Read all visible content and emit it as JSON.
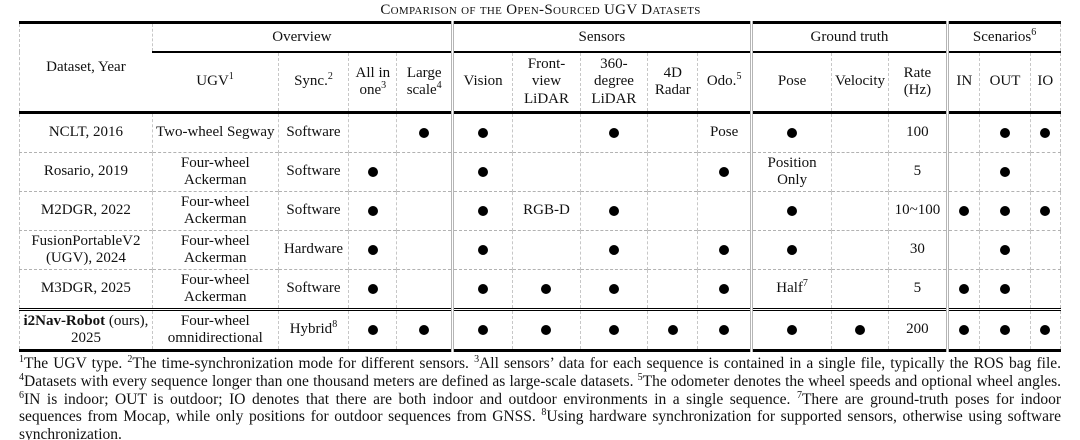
{
  "title": "Comparison of the Open-Sourced UGV Datasets",
  "table": {
    "corner_label": "Dataset, Year",
    "groups": [
      {
        "label": "Overview",
        "sup": ""
      },
      {
        "label": "Sensors",
        "sup": ""
      },
      {
        "label": "Ground truth",
        "sup": ""
      },
      {
        "label": "Scenarios",
        "sup": "6"
      }
    ],
    "columns": [
      {
        "label": "UGV",
        "sup": "1"
      },
      {
        "label": "Sync.",
        "sup": "2"
      },
      {
        "label": "All in one",
        "sup": "3"
      },
      {
        "label": "Large scale",
        "sup": "4"
      },
      {
        "label": "Vision",
        "sup": ""
      },
      {
        "label": "Front-view LiDAR",
        "sup": ""
      },
      {
        "label": "360-degree LiDAR",
        "sup": ""
      },
      {
        "label": "4D Radar",
        "sup": ""
      },
      {
        "label": "Odo.",
        "sup": "5"
      },
      {
        "label": "Pose",
        "sup": ""
      },
      {
        "label": "Velocity",
        "sup": ""
      },
      {
        "label": "Rate (Hz)",
        "sup": ""
      },
      {
        "label": "IN",
        "sup": ""
      },
      {
        "label": "OUT",
        "sup": ""
      },
      {
        "label": "IO",
        "sup": ""
      }
    ],
    "dot_symbol": "●",
    "rows": [
      {
        "dataset_bold": "",
        "dataset": "NCLT, 2016",
        "cells": [
          "Two-wheel Segway",
          "Software",
          "",
          "●",
          "●",
          "",
          "●",
          "",
          "Pose",
          "●",
          "",
          "100",
          "",
          "●",
          "●"
        ]
      },
      {
        "dataset_bold": "",
        "dataset": "Rosario, 2019",
        "cells": [
          "Four-wheel Ackerman",
          "Software",
          "●",
          "",
          "●",
          "",
          "",
          "",
          "●",
          "Position Only",
          "",
          "5",
          "",
          "●",
          ""
        ]
      },
      {
        "dataset_bold": "",
        "dataset": "M2DGR, 2022",
        "cells": [
          "Four-wheel Ackerman",
          "Software",
          "●",
          "",
          "●",
          "RGB-D",
          "●",
          "",
          "",
          "●",
          "",
          "10~100",
          "●",
          "●",
          "●"
        ]
      },
      {
        "dataset_bold": "",
        "dataset": "FusionPortableV2 (UGV), 2024",
        "cells": [
          "Four-wheel Ackerman",
          "Hardware",
          "●",
          "",
          "●",
          "",
          "●",
          "",
          "●",
          "●",
          "",
          "30",
          "",
          "●",
          ""
        ]
      },
      {
        "dataset_bold": "",
        "dataset": "M3DGR, 2025",
        "cells": [
          "Four-wheel Ackerman",
          "Software",
          "●",
          "",
          "●",
          "●",
          "●",
          "",
          "●",
          {
            "t": "Half",
            "s": "7"
          },
          "",
          "5",
          "●",
          "●",
          ""
        ]
      },
      {
        "dataset_bold": "i2Nav-Robot",
        "dataset": " (ours), 2025",
        "cells": [
          "Four-wheel omnidirectional",
          {
            "t": "Hybrid",
            "s": "8"
          },
          "●",
          "●",
          "●",
          "●",
          "●",
          "●",
          "●",
          "●",
          "●",
          "200",
          "●",
          "●",
          "●"
        ]
      }
    ]
  },
  "footnotes": [
    {
      "marker": "1",
      "text": "The UGV type."
    },
    {
      "marker": "2",
      "text": "The time-synchronization mode for different sensors."
    },
    {
      "marker": "3",
      "text": "All sensors’ data for each sequence is contained in a single file, typically the ROS bag file."
    },
    {
      "marker": "4",
      "text": "Datasets with every sequence longer than one thousand meters are defined as large-scale datasets."
    },
    {
      "marker": "5",
      "text": "The odometer denotes the wheel speeds and optional wheel angles."
    },
    {
      "marker": "6",
      "text": "IN is indoor; OUT is outdoor; IO denotes that there are both indoor and outdoor environments in a single sequence."
    },
    {
      "marker": "7",
      "text": "There are ground-truth poses for indoor sequences from Mocap, while only positions for outdoor sequences from GNSS."
    },
    {
      "marker": "8",
      "text": "Using hardware synchronization for supported sensors, otherwise using software synchronization."
    }
  ]
}
